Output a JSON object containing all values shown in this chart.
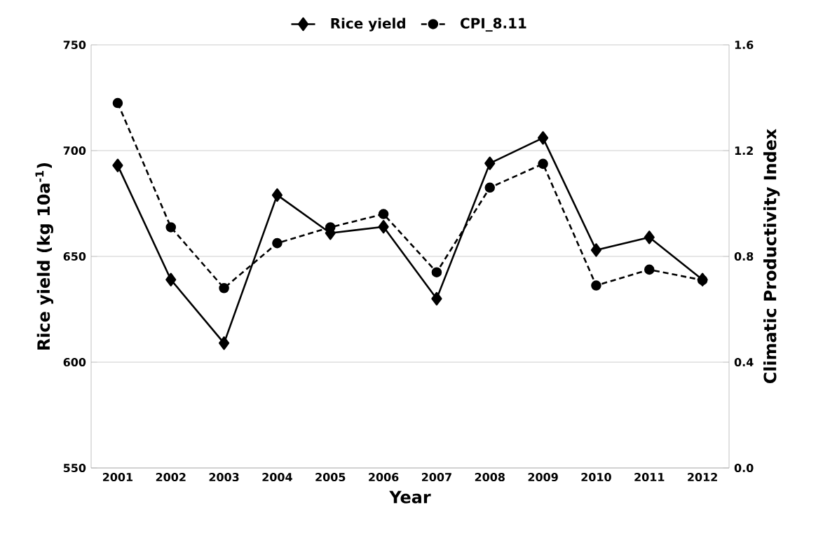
{
  "chart_data": {
    "type": "line",
    "categories": [
      "2001",
      "2002",
      "2003",
      "2004",
      "2005",
      "2006",
      "2007",
      "2008",
      "2009",
      "2010",
      "2011",
      "2012"
    ],
    "series": [
      {
        "name": "Rice yield",
        "color": "#000000",
        "marker": "diamond",
        "line_style": "solid",
        "values": [
          693,
          639,
          609,
          679,
          661,
          664,
          630,
          694,
          706,
          653,
          659,
          639
        ]
      },
      {
        "name": "CPI_8.11",
        "color": "#000000",
        "marker": "circle",
        "line_style": "dashed",
        "axis": "y2",
        "values": [
          1.38,
          0.91,
          0.68,
          0.85,
          0.91,
          0.96,
          0.74,
          1.06,
          1.15,
          0.69,
          0.75,
          0.71
        ]
      }
    ],
    "xlabel": "Year",
    "ylabel": "Rice yield (kg 10a$^{-1}$)",
    "y2label": "Climatic Productivity Index",
    "ylim": [
      550,
      750
    ],
    "yticks": [
      550,
      600,
      650,
      700,
      750
    ],
    "y2lim": [
      0,
      1.6
    ],
    "y2ticks": [
      {
        "value": 0,
        "label": "0.0"
      },
      0.4,
      0.8,
      1.2,
      1.6
    ],
    "grid": "y",
    "legend": "top"
  }
}
